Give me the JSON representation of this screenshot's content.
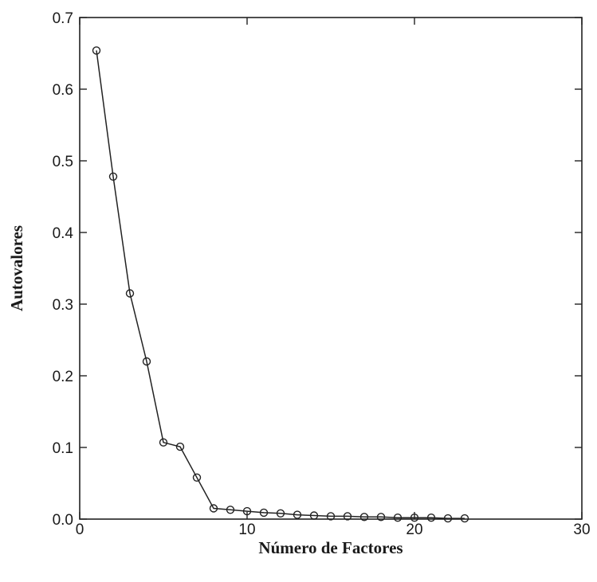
{
  "chart_data": {
    "type": "line",
    "title": "",
    "xlabel": "Número de Factores",
    "ylabel": "Autovalores",
    "xlim": [
      0,
      30
    ],
    "ylim": [
      0,
      0.7
    ],
    "x_ticks": [
      0,
      10,
      20,
      30
    ],
    "x_tick_labels": [
      "0",
      "10",
      "20",
      "30"
    ],
    "y_ticks": [
      0,
      0.1,
      0.2,
      0.3,
      0.4,
      0.5,
      0.6,
      0.7
    ],
    "y_tick_labels": [
      "0.0",
      "0.1",
      "0.2",
      "0.3",
      "0.4",
      "0.5",
      "0.6",
      "0.7"
    ],
    "grid": false,
    "marker": "open-circle",
    "series": [
      {
        "x": [
          1,
          2,
          3,
          4,
          5,
          6,
          7,
          8,
          9,
          10,
          11,
          12,
          13,
          14,
          15,
          16,
          17,
          18,
          19,
          20,
          21,
          22,
          23
        ],
        "y": [
          0.654,
          0.478,
          0.315,
          0.22,
          0.107,
          0.101,
          0.058,
          0.015,
          0.013,
          0.011,
          0.009,
          0.008,
          0.006,
          0.005,
          0.004,
          0.004,
          0.003,
          0.003,
          0.002,
          0.002,
          0.002,
          0.001,
          0.001
        ]
      }
    ]
  }
}
